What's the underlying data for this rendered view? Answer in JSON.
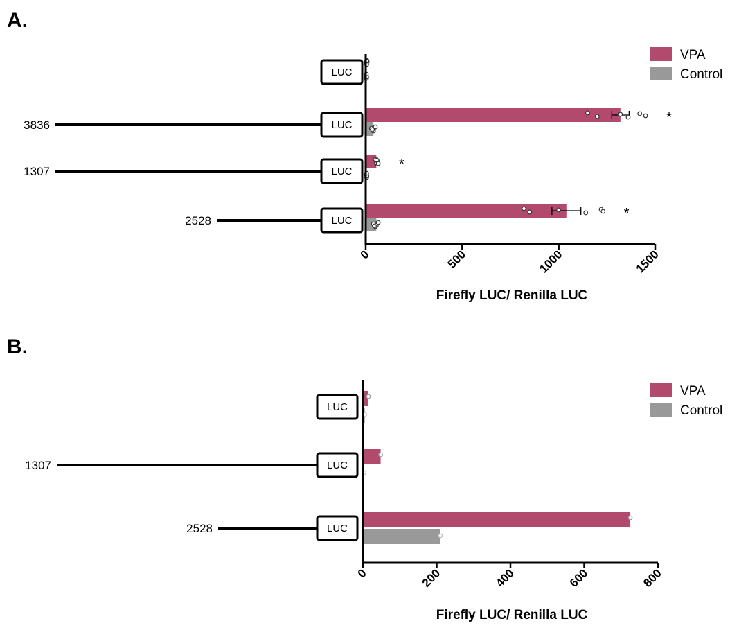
{
  "chart_data": [
    {
      "panel": "A.",
      "type": "bar",
      "orientation": "horizontal",
      "xlabel": "Firefly LUC/ Renilla LUC",
      "xlim": [
        0,
        1500
      ],
      "xticks": [
        "0",
        "500",
        "1000",
        "1500"
      ],
      "legend": {
        "placement": "top-right",
        "entries": [
          "VPA",
          "Control"
        ]
      },
      "series": [
        {
          "name": "VPA",
          "color": "#b24a6e",
          "values": [
            5,
            1320,
            55,
            1040
          ]
        },
        {
          "name": "Control",
          "color": "#999999",
          "values": [
            3,
            40,
            5,
            55
          ]
        }
      ],
      "constructs": [
        {
          "length_label": "",
          "luc_label": "LUC",
          "vpa_points": [
            6,
            3,
            8,
            5,
            4
          ],
          "control_points": [
            2,
            4,
            3,
            5,
            3
          ],
          "vpa_error": 0,
          "significant": ""
        },
        {
          "length_label": "3836",
          "luc_label": "LUC",
          "vpa_points": [
            1150,
            1200,
            1320,
            1360,
            1420,
            1450
          ],
          "control_points": [
            30,
            40,
            45,
            35,
            50
          ],
          "vpa_error": 45,
          "significant": "*"
        },
        {
          "length_label": "1307",
          "luc_label": "LUC",
          "vpa_points": [
            50,
            55,
            60,
            65,
            58
          ],
          "control_points": [
            3,
            5,
            4,
            6,
            5
          ],
          "vpa_error": 5,
          "significant": "*"
        },
        {
          "length_label": "2528",
          "luc_label": "LUC",
          "vpa_points": [
            820,
            850,
            1000,
            1140,
            1220,
            1230
          ],
          "control_points": [
            40,
            50,
            60,
            55,
            65,
            45
          ],
          "vpa_error": 75,
          "significant": "*"
        }
      ]
    },
    {
      "panel": "B.",
      "type": "bar",
      "orientation": "horizontal",
      "xlabel": "Firefly LUC/ Renilla LUC",
      "xlim": [
        0,
        800
      ],
      "xticks": [
        "0",
        "200",
        "400",
        "600",
        "800"
      ],
      "legend": {
        "placement": "top-right",
        "entries": [
          "VPA",
          "Control"
        ]
      },
      "series": [
        {
          "name": "VPA",
          "color": "#b24a6e",
          "values": [
            15,
            48,
            725
          ]
        },
        {
          "name": "Control",
          "color": "#999999",
          "values": [
            5,
            3,
            210
          ]
        }
      ],
      "constructs": [
        {
          "length_label": "",
          "luc_label": "LUC",
          "vpa_points": [
            15
          ],
          "control_points": [
            5
          ],
          "vpa_error": 0,
          "significant": ""
        },
        {
          "length_label": "1307",
          "luc_label": "LUC",
          "vpa_points": [
            48
          ],
          "control_points": [
            3
          ],
          "vpa_error": 0,
          "significant": ""
        },
        {
          "length_label": "2528",
          "luc_label": "LUC",
          "vpa_points": [
            725
          ],
          "control_points": [
            210
          ],
          "vpa_error": 0,
          "significant": ""
        }
      ]
    }
  ]
}
